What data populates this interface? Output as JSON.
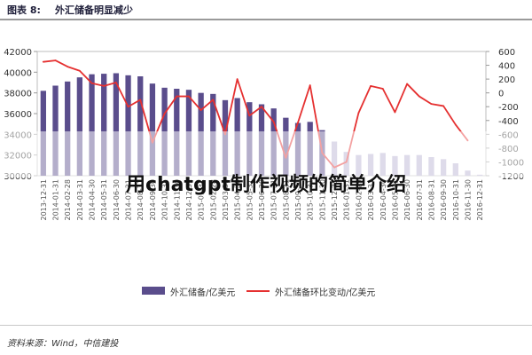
{
  "figure": {
    "label": "图表 8:",
    "title": "外汇储备明显减少"
  },
  "chart_data": {
    "type": "bar+line",
    "categories": [
      "2013-12-31",
      "2014-01-31",
      "2014-02-28",
      "2014-03-31",
      "2014-04-30",
      "2014-05-31",
      "2014-06-30",
      "2014-07-31",
      "2014-08-31",
      "2014-09-30",
      "2014-10-31",
      "2014-11-30",
      "2014-12-31",
      "2015-01-31",
      "2015-02-28",
      "2015-03-31",
      "2015-04-30",
      "2015-05-31",
      "2015-06-30",
      "2015-07-31",
      "2015-08-31",
      "2015-09-30",
      "2015-10-31",
      "2015-11-30",
      "2015-12-31",
      "2016-01-31",
      "2016-02-29",
      "2016-03-31",
      "2016-04-30",
      "2016-05-31",
      "2016-06-30",
      "2016-07-31",
      "2016-08-31",
      "2016-09-30",
      "2016-10-31",
      "2016-11-30",
      "2016-12-31"
    ],
    "series": [
      {
        "name": "外汇储备/亿美元",
        "kind": "bar",
        "axis": "left",
        "color": "#5a4d8c",
        "values": [
          38200,
          38700,
          39100,
          39500,
          39800,
          39850,
          39900,
          39700,
          39600,
          38900,
          38500,
          38400,
          38300,
          38000,
          37900,
          37300,
          37500,
          37100,
          36900,
          36500,
          35600,
          35100,
          35200,
          34400,
          33300,
          32300,
          32000,
          32100,
          32200,
          31900,
          32000,
          32000,
          31800,
          31600,
          31200,
          30500,
          30100
        ]
      },
      {
        "name": "外汇储备环比变动/亿美元",
        "kind": "line",
        "axis": "right",
        "color": "#e53030",
        "values": [
          450,
          470,
          380,
          320,
          140,
          100,
          150,
          -200,
          -100,
          -720,
          -300,
          -50,
          -50,
          -250,
          -100,
          -600,
          200,
          -330,
          -200,
          -420,
          -940,
          -430,
          110,
          -870,
          -1080,
          -1000,
          -290,
          100,
          60,
          -280,
          130,
          -50,
          -160,
          -190,
          -460,
          -690,
          null
        ]
      }
    ],
    "ylim_left": [
      30000,
      42000
    ],
    "yticks_left": [
      30000,
      32000,
      34000,
      36000,
      38000,
      40000,
      42000
    ],
    "ylim_right": [
      -1200,
      600
    ],
    "yticks_right": [
      -1200,
      -1000,
      -800,
      -600,
      -400,
      -200,
      0,
      200,
      400,
      600
    ],
    "legend_position": "bottom",
    "grid": false
  },
  "legend": {
    "bar_label": "外汇储备/亿美元",
    "line_label": "外汇储备环比变动/亿美元"
  },
  "source": "资料来源：Wind，中信建投",
  "overlay_text": "用chatgpt制作视频的简单介绍"
}
